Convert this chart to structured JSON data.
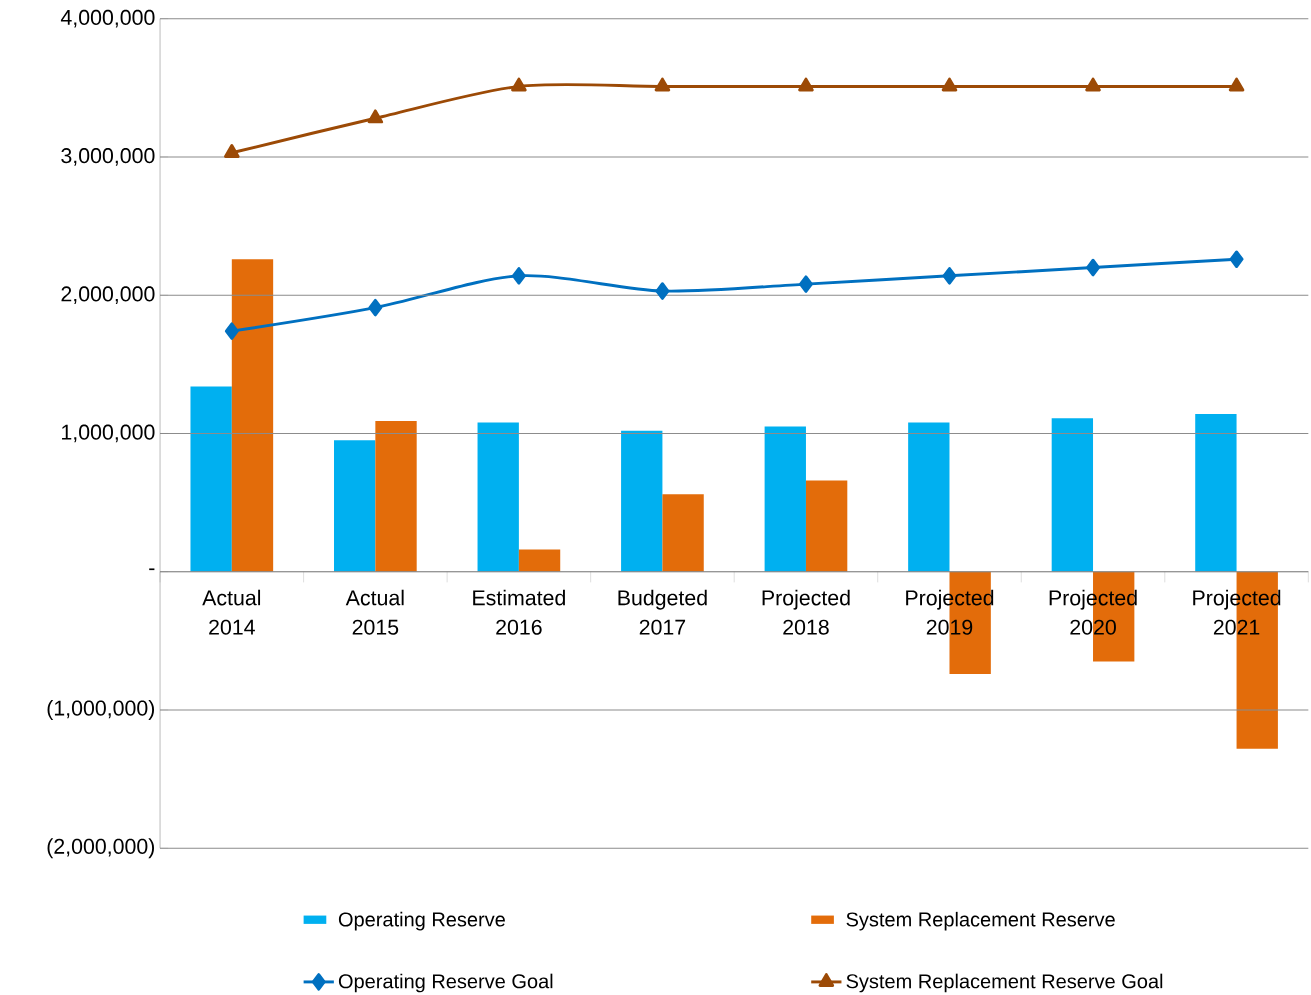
{
  "chart_data": {
    "type": "bar",
    "categories": [
      "Actual 2014",
      "Actual 2015",
      "Estimated 2016",
      "Budgeted 2017",
      "Projected 2018",
      "Projected 2019",
      "Projected 2020",
      "Projected 2021"
    ],
    "series": [
      {
        "name": "Operating Reserve",
        "color": "#00b0f0",
        "values": [
          1340000,
          950000,
          1080000,
          1020000,
          1050000,
          1080000,
          1110000,
          1140000
        ]
      },
      {
        "name": "System Replacement Reserve",
        "color": "#e36c0a",
        "values": [
          2260000,
          1090000,
          160000,
          560000,
          660000,
          -740000,
          -650000,
          -1280000
        ]
      },
      {
        "name": "Operating Reserve Goal",
        "type": "line",
        "marker": "diamond",
        "color": "#0070c0",
        "values": [
          1740000,
          1910000,
          2140000,
          2030000,
          2080000,
          2140000,
          2200000,
          2260000
        ]
      },
      {
        "name": "System Replacement Reserve Goal",
        "type": "line",
        "marker": "triangle",
        "color": "#9c4a06",
        "values": [
          3030000,
          3280000,
          3510000,
          3510000,
          3510000,
          3510000,
          3510000,
          3510000
        ]
      }
    ],
    "ylim": [
      -2000000,
      4000000
    ],
    "yticks": [
      {
        "value": -2000000,
        "label": "(2,000,000)"
      },
      {
        "value": -1000000,
        "label": "(1,000,000)"
      },
      {
        "value": 0,
        "label": "-"
      },
      {
        "value": 1000000,
        "label": "1,000,000"
      },
      {
        "value": 2000000,
        "label": "2,000,000"
      },
      {
        "value": 3000000,
        "label": "3,000,000"
      },
      {
        "value": 4000000,
        "label": "4,000,000"
      }
    ],
    "grid": "y",
    "legend": "bottom"
  }
}
